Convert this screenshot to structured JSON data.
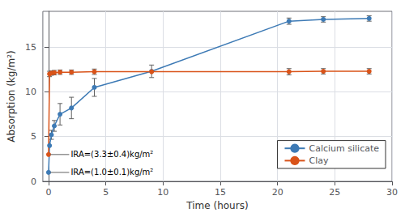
{
  "chart_data": {
    "type": "line",
    "x": [
      0,
      0.083,
      0.25,
      0.5,
      1,
      2,
      4,
      9,
      21,
      24,
      28
    ],
    "series": [
      {
        "name": "Calcium silicate",
        "color": "#3d7ab5",
        "marker": "circle",
        "values": [
          1.0,
          4.0,
          5.2,
          6.2,
          7.5,
          8.2,
          10.5,
          12.3,
          17.9,
          18.1,
          18.2
        ],
        "errors": [
          0.0,
          0.0,
          0.5,
          0.6,
          1.2,
          1.2,
          1.0,
          0.7,
          0.35,
          0.3,
          0.3
        ]
      },
      {
        "name": "Clay",
        "color": "#d95319",
        "marker": "circle",
        "values": [
          3.0,
          12.0,
          12.1,
          12.15,
          12.2,
          12.2,
          12.25,
          12.25,
          12.25,
          12.3,
          12.3
        ],
        "errors": [
          0.0,
          0.3,
          0.25,
          0.25,
          0.25,
          0.25,
          0.3,
          0.0,
          0.35,
          0.3,
          0.3
        ]
      }
    ],
    "xlabel": "Time (hours)",
    "ylabel": "Absorption (kg/m²)",
    "xlim": [
      -0.5,
      30
    ],
    "ylim": [
      0,
      19
    ],
    "xticks": [
      0,
      5,
      10,
      15,
      20,
      25,
      30
    ],
    "yticks": [
      0,
      5,
      10,
      15
    ],
    "grid": true,
    "legend": "lower right",
    "annotations": [
      {
        "text": "IRA=(3.3±0.4)kg/m²",
        "x": 1.8,
        "y": 3.0,
        "arrow_to": [
          0.15,
          3.0
        ]
      },
      {
        "text": "IRA=(1.0±0.1)kg/m²",
        "x": 1.8,
        "y": 1.0,
        "arrow_to": [
          0.15,
          1.0
        ]
      }
    ]
  }
}
